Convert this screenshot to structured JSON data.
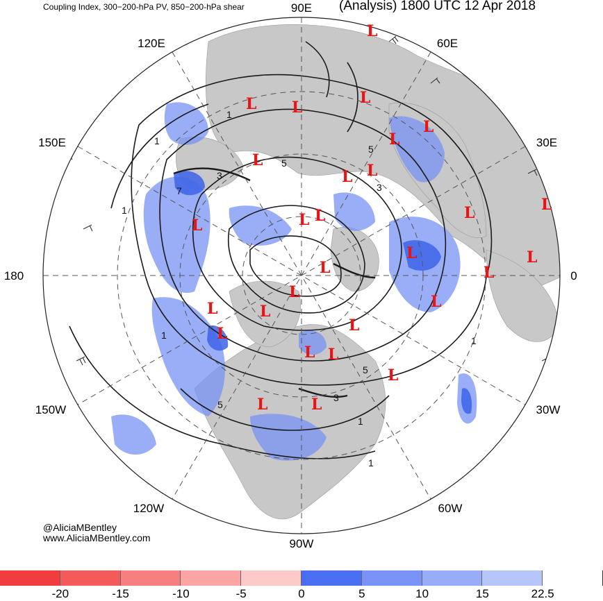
{
  "header": {
    "title_left": "Coupling Index, 300−200-hPa PV, 850−200-hPa shear",
    "title_right": "(Analysis) 1800 UTC 12 Apr 2018"
  },
  "map": {
    "projection": "north-polar-stereographic",
    "longitude_labels": {
      "top": "90E",
      "upper_left": "120E",
      "upper_right": "60E",
      "left_upper": "150E",
      "right_upper": "30E",
      "left": "180",
      "right": "0",
      "left_lower": "150W",
      "right_lower": "30W",
      "lower_left": "120W",
      "lower_right": "60W",
      "bottom": "90W"
    },
    "low_marker": "L",
    "low_count": 27,
    "contour_labels": [
      "1",
      "3",
      "5",
      "7",
      "1",
      "3",
      "5",
      "1",
      "1",
      "5",
      "1",
      "3",
      "5",
      "1",
      "1",
      "1",
      "3",
      "5",
      "1"
    ],
    "colors": {
      "land": "#c8c8c8",
      "ocean": "#ffffff",
      "contour": "#1a1a1a",
      "low_marker": "#e81414",
      "positive_fill": "#6f8ff5",
      "strong_positive_fill": "#3d63e8"
    }
  },
  "colorbar": {
    "colors": [
      "#f03c3c",
      "#f45a5a",
      "#f77f7f",
      "#fba5a5",
      "#fdc9c9",
      "#4a6ef2",
      "#7893f5",
      "#98adf7",
      "#b7c6fa",
      "#ffffff"
    ],
    "tick_labels": [
      "-20",
      "-15",
      "-10",
      "-5",
      "0",
      "5",
      "10",
      "15",
      "22.5"
    ]
  },
  "credits": {
    "handle": "@AliciaMBentley",
    "site": "www.AliciaMBentley.com"
  }
}
